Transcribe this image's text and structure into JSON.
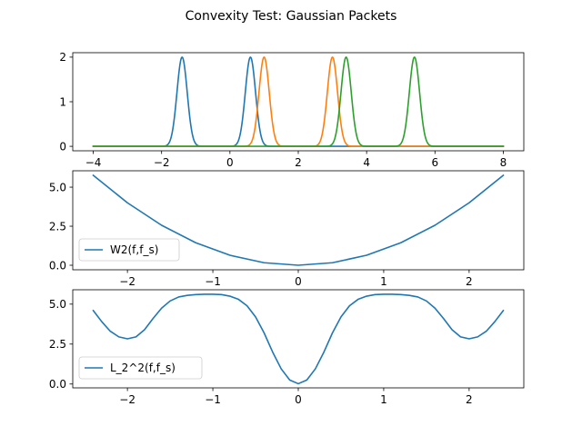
{
  "figure_title": "Convexity Test: Gaussian Packets",
  "colors": {
    "c0": "#1f77b4",
    "c1": "#ff7f0e",
    "c2": "#2ca02c"
  },
  "chart_data": [
    {
      "type": "line",
      "title": "",
      "xlabel": "",
      "ylabel": "",
      "xlim": [
        -4.6,
        8.6
      ],
      "ylim": [
        -0.1,
        2.1
      ],
      "xticks": [
        -4,
        -2,
        0,
        2,
        4,
        6,
        8
      ],
      "yticks": [
        0,
        1,
        2
      ],
      "grid": false,
      "legend": null,
      "series": [
        {
          "kind": "gaussians",
          "color": "#1f77b4",
          "centers": [
            -1.4,
            0.6
          ],
          "amplitude": 2,
          "sigma": 0.15,
          "x_range": [
            -4,
            8
          ]
        },
        {
          "kind": "gaussians",
          "color": "#ff7f0e",
          "centers": [
            1.0,
            3.0
          ],
          "amplitude": 2,
          "sigma": 0.15,
          "x_range": [
            -4,
            8
          ]
        },
        {
          "kind": "gaussians",
          "color": "#2ca02c",
          "centers": [
            3.4,
            5.4
          ],
          "amplitude": 2,
          "sigma": 0.15,
          "x_range": [
            -4,
            8
          ]
        }
      ]
    },
    {
      "type": "line",
      "title": "",
      "xlabel": "",
      "ylabel": "",
      "xlim": [
        -2.64,
        2.64
      ],
      "ylim": [
        -0.29,
        6.05
      ],
      "xticks": [
        -2,
        -1,
        0,
        1,
        2
      ],
      "yticks": [
        0.0,
        2.5,
        5.0
      ],
      "grid": false,
      "legend": "lower-left",
      "series": [
        {
          "name": "W2(f,f_s)",
          "color": "#1f77b4",
          "x": [
            -2.4,
            -2.0,
            -1.6,
            -1.2,
            -0.8,
            -0.4,
            0.0,
            0.4,
            0.8,
            1.2,
            1.6,
            2.0,
            2.4
          ],
          "y": [
            5.76,
            4.0,
            2.56,
            1.44,
            0.64,
            0.16,
            0.0,
            0.16,
            0.64,
            1.44,
            2.56,
            4.0,
            5.76
          ]
        }
      ]
    },
    {
      "type": "line",
      "title": "",
      "xlabel": "",
      "ylabel": "",
      "xlim": [
        -2.64,
        2.64
      ],
      "ylim": [
        -0.24,
        5.9
      ],
      "xticks": [
        -2,
        -1,
        0,
        1,
        2
      ],
      "yticks": [
        0.0,
        2.5,
        5.0
      ],
      "grid": false,
      "legend": "lower-left",
      "series": [
        {
          "name": "L_2^2(f,f_s)",
          "color": "#1f77b4",
          "x": [
            -2.4,
            -2.3,
            -2.2,
            -2.1,
            -2.0,
            -1.9,
            -1.8,
            -1.7,
            -1.6,
            -1.5,
            -1.4,
            -1.3,
            -1.2,
            -1.1,
            -1.0,
            -0.9,
            -0.8,
            -0.7,
            -0.6,
            -0.5,
            -0.4,
            -0.3,
            -0.2,
            -0.1,
            0.0,
            0.1,
            0.2,
            0.3,
            0.4,
            0.5,
            0.6,
            0.7,
            0.8,
            0.9,
            1.0,
            1.1,
            1.2,
            1.3,
            1.4,
            1.5,
            1.6,
            1.7,
            1.8,
            1.9,
            2.0,
            2.1,
            2.2,
            2.3,
            2.4
          ],
          "y": [
            4.6,
            3.9,
            3.3,
            2.95,
            2.83,
            2.95,
            3.4,
            4.1,
            4.75,
            5.2,
            5.45,
            5.55,
            5.6,
            5.62,
            5.62,
            5.6,
            5.5,
            5.3,
            4.9,
            4.2,
            3.2,
            2.0,
            0.95,
            0.25,
            0.02,
            0.25,
            0.95,
            2.0,
            3.2,
            4.2,
            4.9,
            5.3,
            5.5,
            5.6,
            5.62,
            5.62,
            5.6,
            5.55,
            5.45,
            5.2,
            4.75,
            4.1,
            3.4,
            2.95,
            2.83,
            2.95,
            3.3,
            3.9,
            4.6
          ]
        }
      ]
    }
  ]
}
